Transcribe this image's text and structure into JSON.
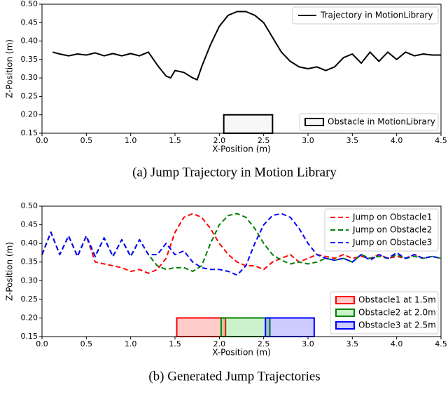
{
  "chart_data": [
    {
      "type": "line",
      "caption": "(a) Jump Trajectory in Motion Library",
      "xlabel": "X-Position (m)",
      "ylabel": "Z-Position (m)",
      "x": [
        0.12,
        0.2,
        0.3,
        0.4,
        0.5,
        0.6,
        0.7,
        0.8,
        0.9,
        1.0,
        1.1,
        1.2,
        1.3,
        1.4,
        1.45,
        1.5,
        1.6,
        1.7,
        1.75,
        1.8,
        1.9,
        2.0,
        2.1,
        2.2,
        2.3,
        2.4,
        2.5,
        2.6,
        2.7,
        2.8,
        2.9,
        3.0,
        3.1,
        3.2,
        3.3,
        3.4,
        3.5,
        3.6,
        3.7,
        3.8,
        3.9,
        4.0,
        4.1,
        4.2,
        4.3,
        4.4,
        4.5
      ],
      "series": [
        {
          "name": "Trajectory in MotionLibrary",
          "color": "#000000",
          "linestyle": "solid",
          "values": [
            0.37,
            0.365,
            0.36,
            0.365,
            0.362,
            0.368,
            0.36,
            0.366,
            0.36,
            0.366,
            0.36,
            0.37,
            0.335,
            0.305,
            0.3,
            0.32,
            0.315,
            0.3,
            0.295,
            0.33,
            0.39,
            0.44,
            0.47,
            0.48,
            0.48,
            0.47,
            0.45,
            0.41,
            0.37,
            0.345,
            0.33,
            0.325,
            0.33,
            0.32,
            0.33,
            0.355,
            0.365,
            0.34,
            0.37,
            0.345,
            0.37,
            0.35,
            0.37,
            0.36,
            0.365,
            0.362,
            0.362
          ]
        }
      ],
      "obstacles": [
        {
          "name": "Obstacle in MotionLibrary",
          "color": "#000000",
          "fill": "#d9d9d9",
          "x": [
            2.05,
            2.6
          ],
          "y": [
            0.15,
            0.2
          ]
        }
      ],
      "xlim": [
        0,
        4.5
      ],
      "ylim": [
        0.15,
        0.5
      ],
      "xticks": [
        {
          "value": 0,
          "label": "0.0"
        },
        0.5,
        {
          "value": 1,
          "label": "1.0"
        },
        1.5,
        {
          "value": 2,
          "label": "2.0"
        },
        2.5,
        {
          "value": 3,
          "label": "3.0"
        },
        3.5,
        {
          "value": 4,
          "label": "4.0"
        },
        4.5
      ],
      "yticks": [
        0.15,
        {
          "value": 0.2,
          "label": "0.20"
        },
        0.25,
        {
          "value": 0.3,
          "label": "0.30"
        },
        0.35,
        {
          "value": 0.4,
          "label": "0.40"
        },
        0.45,
        {
          "value": 0.5,
          "label": "0.50"
        }
      ],
      "legend": "upper right",
      "obstacle_legend": "lower right"
    },
    {
      "type": "line",
      "caption": "(b) Generated Jump Trajectories",
      "xlabel": "X-Position (m)",
      "ylabel": "Z-Position (m)",
      "x": [
        0,
        0.1,
        0.2,
        0.3,
        0.4,
        0.5,
        0.6,
        0.7,
        0.8,
        0.9,
        1.0,
        1.1,
        1.2,
        1.3,
        1.4,
        1.5,
        1.6,
        1.7,
        1.8,
        1.9,
        2.0,
        2.1,
        2.2,
        2.3,
        2.4,
        2.5,
        2.6,
        2.7,
        2.8,
        2.9,
        3.0,
        3.1,
        3.2,
        3.3,
        3.4,
        3.5,
        3.6,
        3.7,
        3.8,
        3.9,
        4.0,
        4.1,
        4.2,
        4.3,
        4.4,
        4.5
      ],
      "series": [
        {
          "name": "Jump on Obstacle1",
          "color": "#ff0000",
          "linestyle": "dashed",
          "values": [
            0.37,
            0.43,
            0.37,
            0.42,
            0.365,
            0.42,
            0.35,
            0.345,
            0.34,
            0.335,
            0.325,
            0.33,
            0.32,
            0.33,
            0.36,
            0.43,
            0.47,
            0.48,
            0.47,
            0.44,
            0.4,
            0.37,
            0.35,
            0.34,
            0.34,
            0.33,
            0.35,
            0.36,
            0.37,
            0.35,
            0.36,
            0.37,
            0.365,
            0.36,
            0.37,
            0.36,
            0.365,
            0.36,
            0.37,
            0.36,
            0.365,
            0.36,
            0.37,
            0.36,
            0.365,
            0.36
          ]
        },
        {
          "name": "Jump on Obstacle2",
          "color": "#008000",
          "linestyle": "dashed",
          "values": [
            0.37,
            0.43,
            0.37,
            0.42,
            0.365,
            0.42,
            0.365,
            0.415,
            0.365,
            0.41,
            0.365,
            0.41,
            0.37,
            0.34,
            0.33,
            0.335,
            0.335,
            0.325,
            0.34,
            0.4,
            0.45,
            0.475,
            0.48,
            0.47,
            0.44,
            0.4,
            0.37,
            0.355,
            0.345,
            0.35,
            0.345,
            0.35,
            0.36,
            0.355,
            0.36,
            0.35,
            0.37,
            0.36,
            0.365,
            0.36,
            0.37,
            0.36,
            0.365,
            0.36,
            0.365,
            0.36
          ]
        },
        {
          "name": "Jump on Obstacle3",
          "color": "#0000ff",
          "linestyle": "dashed",
          "values": [
            0.37,
            0.43,
            0.37,
            0.42,
            0.365,
            0.42,
            0.365,
            0.415,
            0.365,
            0.41,
            0.365,
            0.41,
            0.37,
            0.37,
            0.4,
            0.37,
            0.38,
            0.35,
            0.335,
            0.33,
            0.33,
            0.325,
            0.315,
            0.34,
            0.4,
            0.45,
            0.475,
            0.48,
            0.47,
            0.44,
            0.4,
            0.37,
            0.36,
            0.355,
            0.36,
            0.35,
            0.37,
            0.355,
            0.37,
            0.36,
            0.375,
            0.36,
            0.37,
            0.36,
            0.365,
            0.36
          ]
        }
      ],
      "obstacles": [
        {
          "name": "Obstacle1 at 1.5m",
          "color": "#ff0000",
          "fill": "#ff0000",
          "x": [
            1.52,
            2.07
          ],
          "y": [
            0.15,
            0.2
          ]
        },
        {
          "name": "Obstacle2 at 2.0m",
          "color": "#008000",
          "fill": "#00c000",
          "x": [
            2.02,
            2.57
          ],
          "y": [
            0.15,
            0.2
          ]
        },
        {
          "name": "Obstacle3 at 2.5m",
          "color": "#0000ff",
          "fill": "#0000ff",
          "x": [
            2.52,
            3.07
          ],
          "y": [
            0.15,
            0.2
          ]
        }
      ],
      "xlim": [
        0,
        4.5
      ],
      "ylim": [
        0.15,
        0.5
      ],
      "xticks": [
        {
          "value": 0,
          "label": "0.0"
        },
        0.5,
        {
          "value": 1,
          "label": "1.0"
        },
        1.5,
        {
          "value": 2,
          "label": "2.0"
        },
        2.5,
        {
          "value": 3,
          "label": "3.0"
        },
        3.5,
        {
          "value": 4,
          "label": "4.0"
        },
        4.5
      ],
      "yticks": [
        0.15,
        {
          "value": 0.2,
          "label": "0.20"
        },
        0.25,
        {
          "value": 0.3,
          "label": "0.30"
        },
        0.35,
        {
          "value": 0.4,
          "label": "0.40"
        },
        0.45,
        {
          "value": 0.5,
          "label": "0.50"
        }
      ],
      "legend": "upper right",
      "obstacle_legend": "lower right"
    }
  ]
}
